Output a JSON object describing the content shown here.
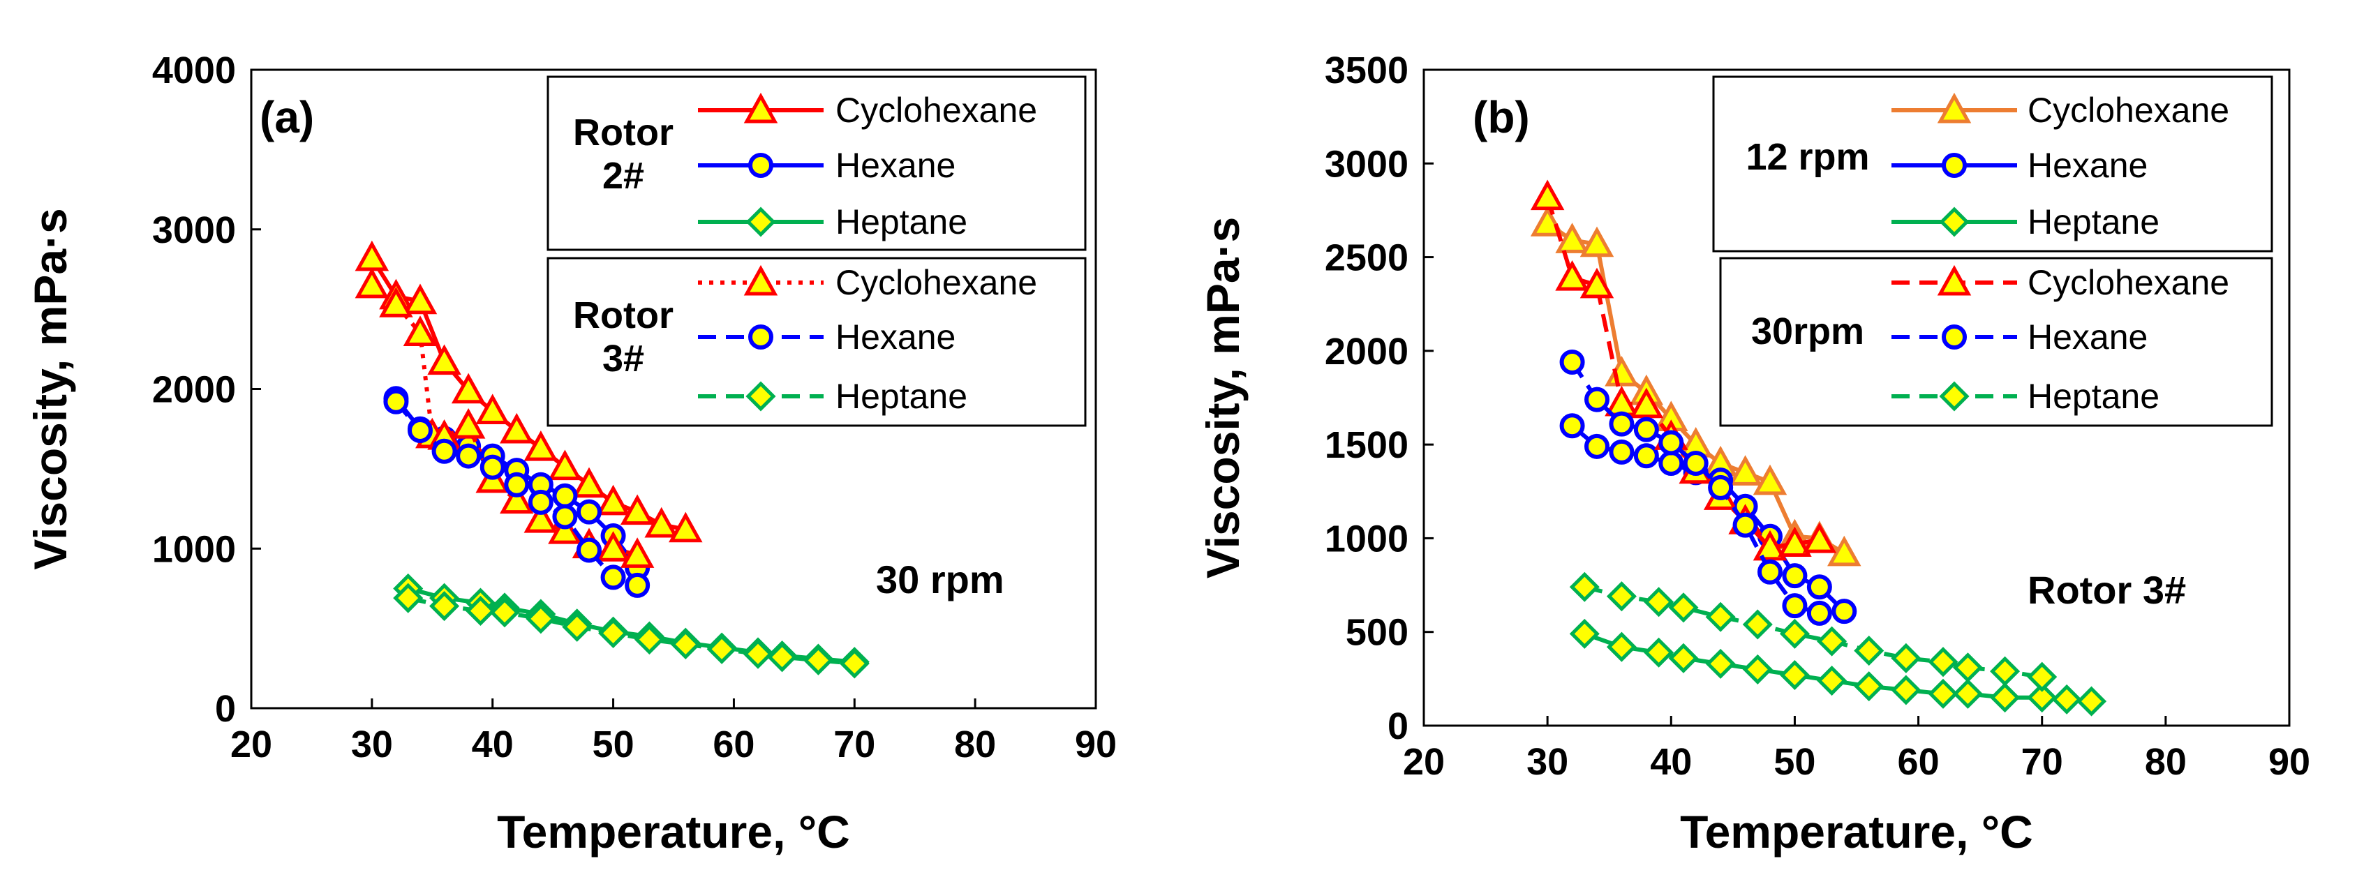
{
  "colors": {
    "cyclohexane": "#ff0000",
    "cyclohexane_b12": "#ed7d31",
    "hexane": "#0000ff",
    "heptane": "#00b050",
    "triangle_fill": "#ffff00",
    "circle_fill": "#ffff00",
    "diamond_fill": "#ffff00"
  },
  "chart_data": [
    {
      "type": "line",
      "panel": "(a)",
      "xlabel": "Temperature, °C",
      "ylabel": "Viscosity, mPa·s",
      "xlim": [
        20,
        90
      ],
      "ylim": [
        0,
        4000
      ],
      "xticks": [
        "20",
        "30",
        "40",
        "50",
        "60",
        "70",
        "80",
        "90"
      ],
      "yticks": [
        "0",
        "1000",
        "2000",
        "3000",
        "4000"
      ],
      "annotation": "30 rpm",
      "legend": [
        {
          "group": "Rotor 2#",
          "entries": [
            "Cyclohexane",
            "Hexane",
            "Heptane"
          ]
        },
        {
          "group": "Rotor 3#",
          "entries": [
            "Cyclohexane",
            "Hexane",
            "Heptane"
          ]
        }
      ],
      "series": [
        {
          "name": "Cyclohexane",
          "group": "Rotor 2#",
          "style": "solid",
          "marker": "triangle",
          "color": "cyclohexane",
          "x": [
            30,
            32,
            34,
            36,
            38,
            40,
            42,
            44,
            46,
            48,
            50,
            52,
            54,
            56
          ],
          "y": [
            2820,
            2580,
            2550,
            2170,
            1990,
            1860,
            1740,
            1630,
            1510,
            1400,
            1290,
            1230,
            1150,
            1120
          ]
        },
        {
          "name": "Hexane",
          "group": "Rotor 2#",
          "style": "solid",
          "marker": "circle",
          "color": "hexane",
          "x": [
            32,
            34,
            36,
            38,
            40,
            42,
            44,
            46,
            48,
            50,
            52
          ],
          "y": [
            1940,
            1750,
            1690,
            1640,
            1580,
            1490,
            1400,
            1330,
            1230,
            1080,
            880
          ]
        },
        {
          "name": "Heptane",
          "group": "Rotor 2#",
          "style": "solid",
          "marker": "diamond",
          "color": "heptane",
          "x": [
            33,
            36,
            39,
            41,
            44,
            47,
            50,
            53,
            56,
            59,
            62,
            64,
            67,
            70
          ],
          "y": [
            750,
            690,
            660,
            630,
            590,
            530,
            480,
            450,
            410,
            380,
            350,
            330,
            310,
            290
          ]
        },
        {
          "name": "Cyclohexane",
          "group": "Rotor 3#",
          "style": "dotted",
          "marker": "triangle",
          "color": "cyclohexane",
          "x": [
            30,
            32,
            34,
            35,
            36,
            38,
            40,
            42,
            44,
            46,
            48,
            50,
            52
          ],
          "y": [
            2650,
            2530,
            2350,
            1710,
            1700,
            1770,
            1430,
            1300,
            1180,
            1110,
            1020,
            1000,
            960
          ]
        },
        {
          "name": "Hexane",
          "group": "Rotor 3#",
          "style": "dashed",
          "marker": "circle",
          "color": "hexane",
          "x": [
            32,
            34,
            36,
            38,
            40,
            42,
            44,
            46,
            48,
            50,
            52
          ],
          "y": [
            1920,
            1740,
            1610,
            1580,
            1510,
            1400,
            1290,
            1200,
            990,
            820,
            770
          ]
        },
        {
          "name": "Heptane",
          "group": "Rotor 3#",
          "style": "dashed",
          "marker": "diamond",
          "color": "heptane",
          "x": [
            33,
            36,
            39,
            41,
            44,
            47,
            50,
            53,
            56,
            59,
            62,
            64,
            67,
            70
          ],
          "y": [
            690,
            640,
            610,
            600,
            560,
            510,
            470,
            430,
            400,
            370,
            340,
            320,
            300,
            280
          ]
        }
      ]
    },
    {
      "type": "line",
      "panel": "(b)",
      "xlabel": "Temperature, °C",
      "ylabel": "Viscosity, mPa·s",
      "xlim": [
        20,
        90
      ],
      "ylim": [
        0,
        3500
      ],
      "xticks": [
        "20",
        "30",
        "40",
        "50",
        "60",
        "70",
        "80",
        "90"
      ],
      "yticks": [
        "0",
        "500",
        "1000",
        "1500",
        "2000",
        "2500",
        "3000",
        "3500"
      ],
      "annotation": "Rotor 3#",
      "legend": [
        {
          "group": "12 rpm",
          "entries": [
            "Cyclohexane",
            "Hexane",
            "Heptane"
          ]
        },
        {
          "group": "30rpm",
          "entries": [
            "Cyclohexane",
            "Hexane",
            "Heptane"
          ]
        }
      ],
      "series": [
        {
          "name": "Cyclohexane",
          "group": "12 rpm",
          "style": "solid",
          "marker": "triangle",
          "color": "cyclohexane_b12",
          "x": [
            30,
            32,
            34,
            36,
            38,
            40,
            42,
            44,
            46,
            48,
            50,
            52,
            54
          ],
          "y": [
            2680,
            2590,
            2570,
            1880,
            1780,
            1640,
            1500,
            1400,
            1350,
            1300,
            1010,
            1000,
            920
          ]
        },
        {
          "name": "Hexane",
          "group": "12 rpm",
          "style": "solid",
          "marker": "circle",
          "color": "hexane",
          "x": [
            32,
            34,
            36,
            38,
            40,
            42,
            44,
            46,
            48,
            50,
            52,
            54
          ],
          "y": [
            1600,
            1490,
            1460,
            1440,
            1400,
            1350,
            1310,
            1170,
            1010,
            800,
            740,
            610
          ]
        },
        {
          "name": "Heptane",
          "group": "12 rpm",
          "style": "solid",
          "marker": "diamond",
          "color": "heptane",
          "x": [
            33,
            36,
            39,
            41,
            44,
            47,
            50,
            53,
            56,
            59,
            62,
            64,
            67,
            70,
            72,
            74
          ],
          "y": [
            490,
            420,
            390,
            360,
            330,
            300,
            270,
            240,
            210,
            190,
            170,
            170,
            150,
            150,
            140,
            130
          ]
        },
        {
          "name": "Cyclohexane",
          "group": "30rpm",
          "style": "dashed",
          "marker": "triangle",
          "color": "cyclohexane",
          "x": [
            30,
            32,
            34,
            36,
            38,
            40,
            42,
            44,
            46,
            48,
            50,
            52
          ],
          "y": [
            2820,
            2390,
            2350,
            1720,
            1710,
            1540,
            1360,
            1220,
            1090,
            950,
            970,
            990
          ]
        },
        {
          "name": "Hexane",
          "group": "30rpm",
          "style": "dashed",
          "marker": "circle",
          "color": "hexane",
          "x": [
            32,
            34,
            36,
            38,
            40,
            42,
            44,
            46,
            48,
            50,
            52
          ],
          "y": [
            1940,
            1740,
            1610,
            1580,
            1510,
            1400,
            1270,
            1070,
            820,
            640,
            600
          ]
        },
        {
          "name": "Heptane",
          "group": "30rpm",
          "style": "dashed",
          "marker": "diamond",
          "color": "heptane",
          "x": [
            33,
            36,
            39,
            41,
            44,
            47,
            50,
            53,
            56,
            59,
            62,
            64,
            67,
            70
          ],
          "y": [
            740,
            690,
            660,
            630,
            580,
            540,
            490,
            450,
            400,
            360,
            340,
            310,
            290,
            260
          ]
        }
      ]
    }
  ]
}
